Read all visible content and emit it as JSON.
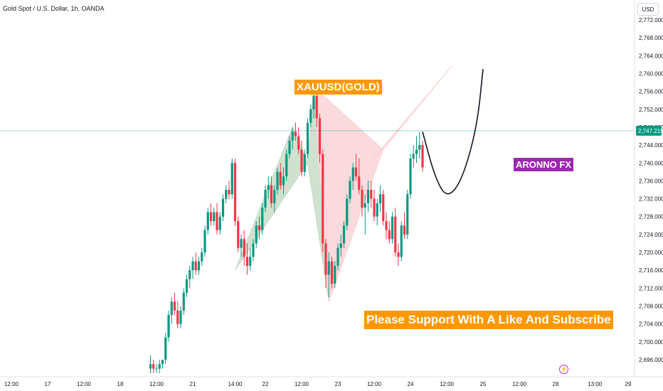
{
  "chart_title": "Gold Spot / U.S. Dollar, 1h, OANDA",
  "currency_button": "USD",
  "annotations": {
    "symbol_label": "XAUUSD(GOLD)",
    "brand_label": "ARONNO FX",
    "support_label": "Please Support With A Like And Subscribe"
  },
  "colors": {
    "up": "#089981",
    "down": "#f23645",
    "price_line": "#26a69a",
    "green_fill": "#c8dcc8",
    "pink_fill": "#f9d4d6",
    "orange_tag": "#ff9800",
    "purple_tag": "#9c27b0"
  },
  "event_icon": "lightning-icon",
  "chart_data": {
    "type": "candlestick",
    "title": "Gold Spot / U.S. Dollar, 1h, OANDA",
    "ylim": [
      2692,
      2774
    ],
    "y_ticks": [
      {
        "value": 2696,
        "label": "2,696.000"
      },
      {
        "value": 2700,
        "label": "2,700.000"
      },
      {
        "value": 2704,
        "label": "2,704.000"
      },
      {
        "value": 2708,
        "label": "2,708.000"
      },
      {
        "value": 2712,
        "label": "2,712.000"
      },
      {
        "value": 2716,
        "label": "2,716.000"
      },
      {
        "value": 2720,
        "label": "2,720.000"
      },
      {
        "value": 2724,
        "label": "2,724.000"
      },
      {
        "value": 2728,
        "label": "2,728.000"
      },
      {
        "value": 2732,
        "label": "2,732.000"
      },
      {
        "value": 2736,
        "label": "2,736.000"
      },
      {
        "value": 2740,
        "label": "2,740.000"
      },
      {
        "value": 2744,
        "label": "2,744.000"
      },
      {
        "value": 2748,
        "label": "2,748.000"
      },
      {
        "value": 2752,
        "label": "2,752.000"
      },
      {
        "value": 2756,
        "label": "2,756.000"
      },
      {
        "value": 2760,
        "label": "2,760.000"
      },
      {
        "value": 2764,
        "label": "2,764.000"
      },
      {
        "value": 2768,
        "label": "2,768.000"
      },
      {
        "value": 2772,
        "label": "2,772.000"
      }
    ],
    "x_ticks": [
      "12:00",
      "17",
      "12:00",
      "18",
      "12:00",
      "21",
      "14:00",
      "22",
      "12:00",
      "23",
      "12:00",
      "24",
      "12:00",
      "25",
      "12:00",
      "28",
      "13:00",
      "29"
    ],
    "x_tick_hours": [
      -12,
      0,
      12,
      24,
      36,
      48,
      62,
      72,
      84,
      96,
      108,
      120,
      132,
      144,
      156,
      168,
      181,
      192
    ],
    "current_price": {
      "value": 2747.215,
      "label": "2,747.215"
    },
    "candles": [
      {
        "t": 34,
        "o": 2694,
        "h": 2697,
        "l": 2693,
        "c": 2695
      },
      {
        "t": 35,
        "o": 2695,
        "h": 2696,
        "l": 2693,
        "c": 2694
      },
      {
        "t": 36,
        "o": 2694,
        "h": 2695,
        "l": 2693,
        "c": 2694
      },
      {
        "t": 37,
        "o": 2694,
        "h": 2696,
        "l": 2693,
        "c": 2695
      },
      {
        "t": 38,
        "o": 2695,
        "h": 2696,
        "l": 2694,
        "c": 2696
      },
      {
        "t": 39,
        "o": 2696,
        "h": 2702,
        "l": 2695,
        "c": 2701
      },
      {
        "t": 40,
        "o": 2701,
        "h": 2707,
        "l": 2700,
        "c": 2706
      },
      {
        "t": 41,
        "o": 2706,
        "h": 2710,
        "l": 2704,
        "c": 2709
      },
      {
        "t": 42,
        "o": 2709,
        "h": 2711,
        "l": 2706,
        "c": 2707
      },
      {
        "t": 43,
        "o": 2707,
        "h": 2709,
        "l": 2703,
        "c": 2704
      },
      {
        "t": 44,
        "o": 2704,
        "h": 2708,
        "l": 2703,
        "c": 2707
      },
      {
        "t": 45,
        "o": 2707,
        "h": 2712,
        "l": 2706,
        "c": 2711
      },
      {
        "t": 46,
        "o": 2711,
        "h": 2715,
        "l": 2710,
        "c": 2714
      },
      {
        "t": 47,
        "o": 2714,
        "h": 2717,
        "l": 2712,
        "c": 2716
      },
      {
        "t": 48,
        "o": 2716,
        "h": 2719,
        "l": 2714,
        "c": 2718
      },
      {
        "t": 49,
        "o": 2718,
        "h": 2720,
        "l": 2715,
        "c": 2716
      },
      {
        "t": 50,
        "o": 2716,
        "h": 2719,
        "l": 2715,
        "c": 2718
      },
      {
        "t": 51,
        "o": 2718,
        "h": 2721,
        "l": 2717,
        "c": 2720
      },
      {
        "t": 52,
        "o": 2720,
        "h": 2726,
        "l": 2719,
        "c": 2725
      },
      {
        "t": 53,
        "o": 2725,
        "h": 2730,
        "l": 2724,
        "c": 2729
      },
      {
        "t": 54,
        "o": 2729,
        "h": 2731,
        "l": 2726,
        "c": 2727
      },
      {
        "t": 55,
        "o": 2727,
        "h": 2730,
        "l": 2726,
        "c": 2729
      },
      {
        "t": 56,
        "o": 2729,
        "h": 2731,
        "l": 2724,
        "c": 2725
      },
      {
        "t": 57,
        "o": 2725,
        "h": 2729,
        "l": 2724,
        "c": 2728
      },
      {
        "t": 58,
        "o": 2728,
        "h": 2733,
        "l": 2727,
        "c": 2732
      },
      {
        "t": 59,
        "o": 2732,
        "h": 2735,
        "l": 2731,
        "c": 2734
      },
      {
        "t": 60,
        "o": 2734,
        "h": 2736,
        "l": 2732,
        "c": 2733
      },
      {
        "t": 61,
        "o": 2733,
        "h": 2741,
        "l": 2732,
        "c": 2740
      },
      {
        "t": 62,
        "o": 2740,
        "h": 2741,
        "l": 2726,
        "c": 2727
      },
      {
        "t": 63,
        "o": 2727,
        "h": 2728,
        "l": 2720,
        "c": 2721
      },
      {
        "t": 64,
        "o": 2721,
        "h": 2724,
        "l": 2719,
        "c": 2723
      },
      {
        "t": 65,
        "o": 2723,
        "h": 2725,
        "l": 2717,
        "c": 2719
      },
      {
        "t": 66,
        "o": 2719,
        "h": 2722,
        "l": 2715,
        "c": 2717
      },
      {
        "t": 67,
        "o": 2717,
        "h": 2721,
        "l": 2716,
        "c": 2719
      },
      {
        "t": 68,
        "o": 2719,
        "h": 2723,
        "l": 2718,
        "c": 2722
      },
      {
        "t": 69,
        "o": 2722,
        "h": 2727,
        "l": 2721,
        "c": 2726
      },
      {
        "t": 70,
        "o": 2726,
        "h": 2728,
        "l": 2723,
        "c": 2725
      },
      {
        "t": 71,
        "o": 2725,
        "h": 2731,
        "l": 2724,
        "c": 2730
      },
      {
        "t": 72,
        "o": 2730,
        "h": 2735,
        "l": 2729,
        "c": 2734
      },
      {
        "t": 73,
        "o": 2734,
        "h": 2737,
        "l": 2732,
        "c": 2735
      },
      {
        "t": 74,
        "o": 2735,
        "h": 2737,
        "l": 2730,
        "c": 2731
      },
      {
        "t": 75,
        "o": 2731,
        "h": 2735,
        "l": 2729,
        "c": 2734
      },
      {
        "t": 76,
        "o": 2734,
        "h": 2739,
        "l": 2733,
        "c": 2738
      },
      {
        "t": 77,
        "o": 2738,
        "h": 2740,
        "l": 2734,
        "c": 2735
      },
      {
        "t": 78,
        "o": 2735,
        "h": 2739,
        "l": 2733,
        "c": 2737
      },
      {
        "t": 79,
        "o": 2737,
        "h": 2743,
        "l": 2736,
        "c": 2742
      },
      {
        "t": 80,
        "o": 2742,
        "h": 2746,
        "l": 2741,
        "c": 2745
      },
      {
        "t": 81,
        "o": 2745,
        "h": 2748,
        "l": 2743,
        "c": 2747
      },
      {
        "t": 82,
        "o": 2747,
        "h": 2749,
        "l": 2745,
        "c": 2746
      },
      {
        "t": 83,
        "o": 2746,
        "h": 2748,
        "l": 2742,
        "c": 2743
      },
      {
        "t": 84,
        "o": 2743,
        "h": 2745,
        "l": 2737,
        "c": 2738
      },
      {
        "t": 85,
        "o": 2738,
        "h": 2743,
        "l": 2737,
        "c": 2742
      },
      {
        "t": 86,
        "o": 2742,
        "h": 2750,
        "l": 2741,
        "c": 2749
      },
      {
        "t": 87,
        "o": 2749,
        "h": 2753,
        "l": 2748,
        "c": 2752
      },
      {
        "t": 88,
        "o": 2752,
        "h": 2756,
        "l": 2750,
        "c": 2755
      },
      {
        "t": 89,
        "o": 2755,
        "h": 2758,
        "l": 2748,
        "c": 2750
      },
      {
        "t": 90,
        "o": 2750,
        "h": 2751,
        "l": 2740,
        "c": 2742
      },
      {
        "t": 91,
        "o": 2742,
        "h": 2743,
        "l": 2720,
        "c": 2722
      },
      {
        "t": 92,
        "o": 2722,
        "h": 2723,
        "l": 2712,
        "c": 2715
      },
      {
        "t": 93,
        "o": 2715,
        "h": 2720,
        "l": 2710,
        "c": 2718
      },
      {
        "t": 94,
        "o": 2718,
        "h": 2719,
        "l": 2712,
        "c": 2713
      },
      {
        "t": 95,
        "o": 2713,
        "h": 2718,
        "l": 2712,
        "c": 2717
      },
      {
        "t": 96,
        "o": 2717,
        "h": 2722,
        "l": 2716,
        "c": 2721
      },
      {
        "t": 97,
        "o": 2721,
        "h": 2724,
        "l": 2719,
        "c": 2722
      },
      {
        "t": 98,
        "o": 2722,
        "h": 2727,
        "l": 2721,
        "c": 2726
      },
      {
        "t": 99,
        "o": 2726,
        "h": 2733,
        "l": 2725,
        "c": 2732
      },
      {
        "t": 100,
        "o": 2732,
        "h": 2737,
        "l": 2731,
        "c": 2736
      },
      {
        "t": 101,
        "o": 2736,
        "h": 2740,
        "l": 2734,
        "c": 2739
      },
      {
        "t": 102,
        "o": 2739,
        "h": 2742,
        "l": 2736,
        "c": 2737
      },
      {
        "t": 103,
        "o": 2737,
        "h": 2741,
        "l": 2733,
        "c": 2734
      },
      {
        "t": 104,
        "o": 2734,
        "h": 2735,
        "l": 2728,
        "c": 2730
      },
      {
        "t": 105,
        "o": 2730,
        "h": 2733,
        "l": 2724,
        "c": 2731
      },
      {
        "t": 106,
        "o": 2731,
        "h": 2736,
        "l": 2729,
        "c": 2734
      },
      {
        "t": 107,
        "o": 2734,
        "h": 2736,
        "l": 2730,
        "c": 2732
      },
      {
        "t": 108,
        "o": 2732,
        "h": 2734,
        "l": 2727,
        "c": 2728
      },
      {
        "t": 109,
        "o": 2728,
        "h": 2732,
        "l": 2726,
        "c": 2731
      },
      {
        "t": 110,
        "o": 2731,
        "h": 2735,
        "l": 2729,
        "c": 2733
      },
      {
        "t": 111,
        "o": 2733,
        "h": 2734,
        "l": 2726,
        "c": 2727
      },
      {
        "t": 112,
        "o": 2727,
        "h": 2729,
        "l": 2723,
        "c": 2725
      },
      {
        "t": 113,
        "o": 2725,
        "h": 2727,
        "l": 2722,
        "c": 2723
      },
      {
        "t": 114,
        "o": 2723,
        "h": 2729,
        "l": 2722,
        "c": 2728
      },
      {
        "t": 115,
        "o": 2728,
        "h": 2730,
        "l": 2719,
        "c": 2720
      },
      {
        "t": 116,
        "o": 2720,
        "h": 2722,
        "l": 2717,
        "c": 2719
      },
      {
        "t": 117,
        "o": 2719,
        "h": 2727,
        "l": 2718,
        "c": 2726
      },
      {
        "t": 118,
        "o": 2726,
        "h": 2729,
        "l": 2723,
        "c": 2724
      },
      {
        "t": 119,
        "o": 2724,
        "h": 2734,
        "l": 2723,
        "c": 2733
      },
      {
        "t": 120,
        "o": 2733,
        "h": 2742,
        "l": 2732,
        "c": 2741
      },
      {
        "t": 121,
        "o": 2741,
        "h": 2744,
        "l": 2739,
        "c": 2742
      },
      {
        "t": 122,
        "o": 2742,
        "h": 2746,
        "l": 2740,
        "c": 2743
      },
      {
        "t": 123,
        "o": 2743,
        "h": 2747,
        "l": 2741,
        "c": 2744
      },
      {
        "t": 124,
        "o": 2744,
        "h": 2745,
        "l": 2738,
        "c": 2739
      }
    ],
    "patterns": [
      {
        "name": "",
        "fill": "#c8dcc8",
        "points": [
          [
            62,
            2716
          ],
          [
            81,
            2748
          ],
          [
            86,
            2740
          ],
          [
            88,
            2757
          ],
          [
            93,
            2709
          ]
        ]
      },
      {
        "name": "",
        "fill": "#f9d4d6",
        "points": [
          [
            93,
            2709
          ],
          [
            88,
            2757
          ],
          [
            111,
            2743
          ],
          [
            104,
            2738
          ],
          [
            134,
            2762
          ]
        ]
      }
    ],
    "projection": [
      [
        124,
        2747
      ],
      [
        128,
        2737
      ],
      [
        132,
        2732
      ],
      [
        137,
        2736
      ],
      [
        142,
        2748
      ],
      [
        144,
        2761
      ]
    ]
  }
}
